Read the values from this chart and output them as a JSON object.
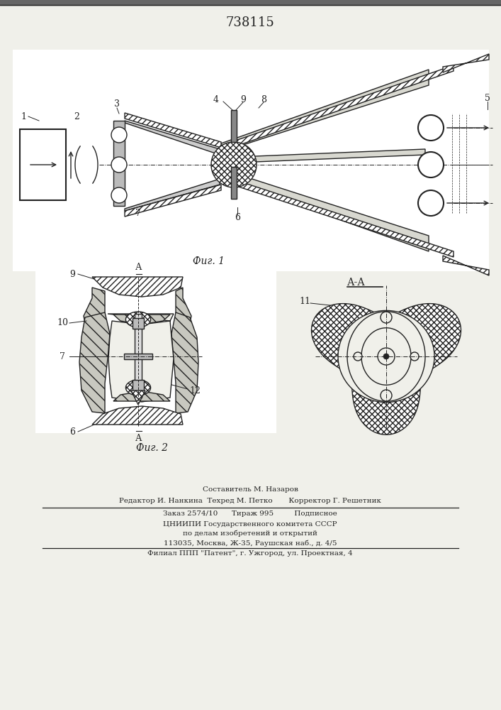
{
  "title": "738115",
  "fig1_caption": "Фиг. 1",
  "fig2_caption": "Фиг. 2",
  "aa_label": "А-А",
  "footer_lines": [
    "Составитель М. Назаров",
    "Редактор И. Нанкина  Техред М. Петко       Корректор Г. Решетник",
    "Заказ 2574/10      Тираж 995         Подписное",
    "ЦНИИПИ Государственного комитета СССР",
    "по делам изобретений и открытий",
    "113035, Москва, Ж-35, Раушская наб., д. 4/5",
    "Филиал ППП \"Патент\", г. Ужгород, ул. Проектная, 4"
  ],
  "bg_color": "#f0f0ea",
  "line_color": "#222222",
  "fill_hatch": "#d8d8d0"
}
